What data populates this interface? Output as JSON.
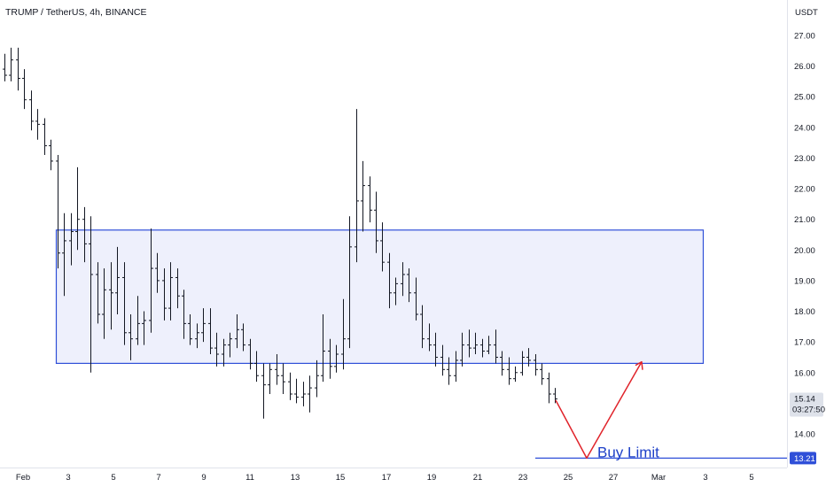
{
  "header": {
    "title": "TRUMP / TetherUS, 4h, BINANCE"
  },
  "y_axis": {
    "unit": "USDT"
  },
  "price_labels": {
    "current_price": "15.14",
    "countdown": "03:27:50",
    "target_price": "13.21"
  },
  "annotation": {
    "buy_label": "Buy Limit"
  },
  "colors": {
    "candle": "#131722",
    "zone_fill": "#eef0fc",
    "zone_border": "#2f4fd8",
    "arrow": "#e0242b",
    "buy_line": "#2f4fd8",
    "buy_text": "#1e40c8",
    "current_label_bg": "#dee2ea",
    "target_label_bg": "#2f4fd8"
  },
  "chart_data": {
    "type": "ohlc",
    "title": "TRUMP / TetherUS, 4h, BINANCE",
    "ylabel": "USDT",
    "ylim": [
      13.2,
      27.4
    ],
    "y_ticks": [
      "14.00",
      "15.00",
      "16.00",
      "17.00",
      "18.00",
      "19.00",
      "20.00",
      "21.00",
      "22.00",
      "23.00",
      "24.00",
      "25.00",
      "26.00",
      "27.00"
    ],
    "x_ticks": [
      "Feb",
      "3",
      "5",
      "7",
      "9",
      "11",
      "13",
      "15",
      "17",
      "19",
      "21",
      "23",
      "25",
      "27",
      "Mar",
      "3",
      "5"
    ],
    "zone": {
      "label": "",
      "from": "Feb 3",
      "to": "Feb 29",
      "low": 16.3,
      "high": 20.65
    },
    "buy_limit": {
      "label": "Buy Limit",
      "price": 13.21
    },
    "projection": [
      {
        "date": "Feb 24",
        "price": 15.1
      },
      {
        "date": "Feb 26",
        "price": 13.21
      },
      {
        "date": "Feb 28",
        "price": 16.35
      }
    ],
    "current_price": 15.14,
    "series": [
      {
        "values": [
          [
            25.9,
            26.4,
            25.5,
            25.7
          ],
          [
            25.7,
            26.6,
            25.5,
            26.2
          ],
          [
            26.2,
            26.6,
            25.2,
            25.6
          ],
          [
            25.6,
            25.9,
            24.6,
            24.9
          ],
          [
            24.9,
            25.2,
            23.9,
            24.2
          ],
          [
            24.2,
            24.6,
            23.6,
            24.1
          ],
          [
            24.1,
            24.3,
            23.1,
            23.4
          ],
          [
            23.4,
            23.6,
            22.6,
            22.9
          ],
          [
            22.9,
            23.1,
            19.4,
            19.9
          ],
          [
            19.9,
            21.2,
            18.5,
            20.3
          ],
          [
            20.3,
            21.2,
            19.5,
            20.6
          ],
          [
            20.6,
            22.7,
            20.0,
            21.0
          ],
          [
            21.0,
            21.4,
            19.6,
            20.2
          ],
          [
            20.2,
            21.1,
            16.0,
            19.2
          ],
          [
            19.2,
            19.6,
            17.6,
            17.9
          ],
          [
            17.9,
            19.4,
            17.1,
            18.7
          ],
          [
            18.7,
            19.6,
            17.4,
            18.6
          ],
          [
            18.6,
            20.1,
            17.9,
            19.1
          ],
          [
            19.1,
            19.6,
            16.9,
            17.3
          ],
          [
            17.3,
            17.9,
            16.4,
            17.1
          ],
          [
            17.1,
            18.5,
            16.9,
            17.6
          ],
          [
            17.6,
            18.0,
            16.9,
            17.7
          ],
          [
            17.7,
            20.7,
            17.3,
            19.4
          ],
          [
            19.4,
            19.9,
            18.6,
            19.0
          ],
          [
            19.0,
            19.4,
            17.7,
            18.1
          ],
          [
            18.1,
            19.6,
            17.7,
            19.1
          ],
          [
            19.1,
            19.4,
            18.1,
            18.5
          ],
          [
            18.5,
            18.7,
            17.1,
            17.6
          ],
          [
            17.6,
            17.9,
            16.9,
            17.1
          ],
          [
            17.1,
            17.6,
            16.8,
            17.3
          ],
          [
            17.3,
            18.1,
            17.0,
            17.6
          ],
          [
            17.6,
            18.1,
            16.6,
            16.8
          ],
          [
            16.8,
            17.3,
            16.2,
            16.6
          ],
          [
            16.6,
            17.1,
            16.2,
            16.9
          ],
          [
            16.9,
            17.3,
            16.5,
            17.1
          ],
          [
            17.1,
            17.9,
            16.8,
            17.4
          ],
          [
            17.4,
            17.6,
            16.7,
            16.9
          ],
          [
            16.9,
            17.1,
            16.1,
            16.3
          ],
          [
            16.3,
            16.7,
            15.7,
            15.9
          ],
          [
            15.9,
            16.3,
            14.5,
            15.6
          ],
          [
            15.6,
            16.3,
            15.3,
            16.1
          ],
          [
            16.1,
            16.6,
            15.6,
            15.9
          ],
          [
            15.9,
            16.3,
            15.3,
            15.7
          ],
          [
            15.7,
            16.0,
            15.1,
            15.3
          ],
          [
            15.3,
            15.8,
            15.0,
            15.2
          ],
          [
            15.2,
            15.7,
            14.9,
            15.3
          ],
          [
            15.3,
            15.9,
            14.7,
            15.5
          ],
          [
            15.5,
            16.4,
            15.2,
            15.9
          ],
          [
            15.9,
            17.9,
            15.7,
            16.7
          ],
          [
            16.7,
            17.1,
            15.8,
            16.2
          ],
          [
            16.2,
            16.9,
            16.0,
            16.6
          ],
          [
            16.6,
            18.4,
            16.1,
            17.1
          ],
          [
            17.1,
            21.1,
            16.8,
            20.1
          ],
          [
            20.1,
            24.6,
            19.6,
            21.6
          ],
          [
            21.6,
            22.9,
            20.6,
            22.1
          ],
          [
            22.1,
            22.4,
            20.9,
            21.3
          ],
          [
            21.3,
            21.9,
            19.9,
            20.3
          ],
          [
            20.3,
            20.9,
            19.3,
            19.6
          ],
          [
            19.6,
            19.9,
            18.1,
            18.6
          ],
          [
            18.6,
            19.1,
            18.2,
            18.9
          ],
          [
            18.9,
            19.6,
            18.5,
            19.2
          ],
          [
            19.2,
            19.4,
            18.3,
            18.6
          ],
          [
            18.6,
            19.1,
            17.7,
            17.9
          ],
          [
            17.9,
            18.2,
            16.8,
            17.1
          ],
          [
            17.1,
            17.6,
            16.7,
            16.9
          ],
          [
            16.9,
            17.3,
            16.2,
            16.5
          ],
          [
            16.5,
            16.9,
            15.9,
            16.1
          ],
          [
            16.1,
            16.5,
            15.6,
            15.9
          ],
          [
            15.9,
            16.7,
            15.7,
            16.4
          ],
          [
            16.4,
            17.3,
            16.2,
            16.9
          ],
          [
            16.9,
            17.4,
            16.5,
            16.8
          ],
          [
            16.8,
            17.3,
            16.6,
            16.9
          ],
          [
            16.9,
            17.1,
            16.5,
            16.7
          ],
          [
            16.7,
            17.2,
            16.6,
            16.9
          ],
          [
            16.9,
            17.4,
            16.3,
            16.5
          ],
          [
            16.5,
            16.7,
            15.9,
            16.1
          ],
          [
            16.1,
            16.5,
            15.6,
            15.8
          ],
          [
            15.8,
            16.2,
            15.7,
            16.0
          ],
          [
            16.0,
            16.7,
            15.9,
            16.5
          ],
          [
            16.5,
            16.8,
            16.2,
            16.4
          ],
          [
            16.4,
            16.6,
            15.9,
            16.1
          ],
          [
            16.1,
            16.3,
            15.6,
            15.8
          ],
          [
            15.8,
            16.0,
            15.0,
            15.3
          ],
          [
            15.3,
            15.5,
            15.0,
            15.14
          ]
        ]
      }
    ]
  }
}
